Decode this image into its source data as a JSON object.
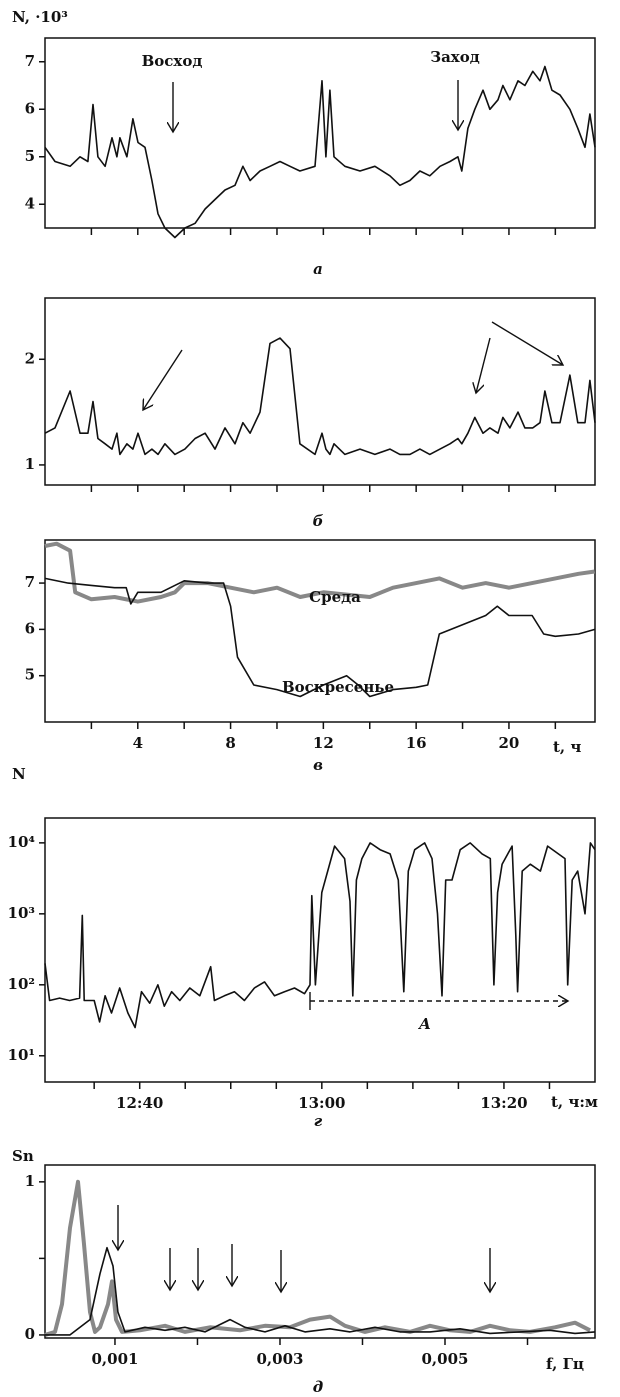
{
  "chart_data": [
    {
      "type": "line",
      "ylabel": "N, ·10³",
      "caption": "а",
      "annotations": [
        "Восход",
        "Заход"
      ],
      "xlim": [
        0,
        23.71
      ],
      "xticks_minor": [
        2,
        4,
        6,
        8,
        10,
        12,
        14,
        16,
        18,
        20,
        22
      ],
      "ylim": [
        3.5,
        7.5
      ],
      "yticks": [
        4,
        5,
        6,
        7
      ],
      "series": [
        {
          "color": "#111111",
          "x": [
            0,
            0.43,
            1.08,
            1.51,
            1.85,
            2.07,
            2.28,
            2.59,
            2.89,
            3.1,
            3.23,
            3.53,
            3.79,
            4.01,
            4.31,
            4.61,
            4.87,
            5.17,
            5.6,
            6.03,
            6.47,
            6.9,
            7.33,
            7.76,
            8.19,
            8.53,
            8.84,
            9.27,
            9.7,
            10.13,
            10.56,
            10.99,
            11.64,
            11.94,
            12.11,
            12.28,
            12.46,
            12.93,
            13.58,
            14.22,
            14.87,
            15.3,
            15.73,
            16.16,
            16.59,
            17.03,
            17.46,
            17.8,
            17.97,
            18.23,
            18.53,
            18.88,
            19.18,
            19.53,
            19.74,
            20.04,
            20.39,
            20.69,
            21.03,
            21.34,
            21.55,
            21.85,
            22.2,
            22.63,
            22.97,
            23.28,
            23.49,
            23.71
          ],
          "values": [
            5.2,
            4.9,
            4.8,
            5.0,
            4.9,
            6.1,
            5.0,
            4.8,
            5.4,
            5.0,
            5.4,
            5.0,
            5.8,
            5.3,
            5.2,
            4.5,
            3.8,
            3.5,
            3.3,
            3.5,
            3.6,
            3.9,
            4.1,
            4.3,
            4.4,
            4.8,
            4.5,
            4.7,
            4.8,
            4.9,
            4.8,
            4.7,
            4.8,
            6.6,
            5.0,
            6.4,
            5.0,
            4.8,
            4.7,
            4.8,
            4.6,
            4.4,
            4.5,
            4.7,
            4.6,
            4.8,
            4.9,
            5.0,
            4.7,
            5.6,
            6.0,
            6.4,
            6.0,
            6.2,
            6.5,
            6.2,
            6.6,
            6.5,
            6.8,
            6.6,
            6.9,
            6.4,
            6.3,
            6.0,
            5.6,
            5.2,
            5.9,
            5.2
          ]
        }
      ]
    },
    {
      "type": "line",
      "caption": "б",
      "xlim": [
        0,
        23.71
      ],
      "xticks_minor": [
        2,
        4,
        6,
        8,
        10,
        12,
        14,
        16,
        18,
        20,
        22
      ],
      "ylim": [
        0.81,
        2.58
      ],
      "yticks": [
        1,
        2
      ],
      "series": [
        {
          "color": "#111111",
          "x": [
            0,
            0.43,
            1.08,
            1.51,
            1.85,
            2.07,
            2.28,
            2.59,
            2.89,
            3.1,
            3.23,
            3.53,
            3.79,
            4.01,
            4.31,
            4.61,
            4.87,
            5.17,
            5.6,
            6.03,
            6.47,
            6.9,
            7.33,
            7.76,
            8.19,
            8.53,
            8.84,
            9.27,
            9.7,
            10.13,
            10.56,
            10.99,
            11.64,
            11.94,
            12.11,
            12.28,
            12.46,
            12.93,
            13.58,
            14.22,
            14.87,
            15.3,
            15.73,
            16.16,
            16.59,
            17.03,
            17.46,
            17.8,
            17.97,
            18.23,
            18.53,
            18.88,
            19.18,
            19.53,
            19.74,
            20.04,
            20.39,
            20.69,
            21.03,
            21.34,
            21.55,
            21.85,
            22.2,
            22.63,
            22.97,
            23.28,
            23.49,
            23.71
          ],
          "values": [
            1.3,
            1.35,
            1.7,
            1.3,
            1.3,
            1.6,
            1.25,
            1.2,
            1.15,
            1.3,
            1.1,
            1.2,
            1.15,
            1.3,
            1.1,
            1.15,
            1.1,
            1.2,
            1.1,
            1.15,
            1.25,
            1.3,
            1.15,
            1.35,
            1.2,
            1.4,
            1.3,
            1.5,
            2.15,
            2.2,
            2.1,
            1.2,
            1.1,
            1.3,
            1.15,
            1.1,
            1.2,
            1.1,
            1.15,
            1.1,
            1.15,
            1.1,
            1.1,
            1.15,
            1.1,
            1.15,
            1.2,
            1.25,
            1.2,
            1.3,
            1.45,
            1.3,
            1.35,
            1.3,
            1.45,
            1.35,
            1.5,
            1.35,
            1.35,
            1.4,
            1.7,
            1.4,
            1.4,
            1.85,
            1.4,
            1.4,
            1.8,
            1.4
          ]
        }
      ]
    },
    {
      "type": "line",
      "caption": "в",
      "xlabel": "t, ч",
      "xlim": [
        0,
        23.71
      ],
      "xticks": [
        4,
        8,
        12,
        16,
        20
      ],
      "xticks_minor": [
        2,
        6,
        10,
        14,
        18,
        22
      ],
      "ylim": [
        4.0,
        7.93
      ],
      "yticks": [
        5,
        6,
        7
      ],
      "series": [
        {
          "name": "Среда",
          "color": "#888888",
          "x": [
            0,
            0.5,
            1.08,
            1.3,
            2,
            3,
            4,
            5,
            5.6,
            6,
            7,
            8,
            9,
            10,
            11,
            12,
            13,
            14,
            15,
            16,
            17,
            18,
            19,
            20,
            21,
            22,
            23,
            23.7
          ],
          "values": [
            7.8,
            7.85,
            7.7,
            6.8,
            6.65,
            6.7,
            6.6,
            6.7,
            6.8,
            7.0,
            7.0,
            6.9,
            6.8,
            6.9,
            6.7,
            6.8,
            6.75,
            6.7,
            6.9,
            7.0,
            7.1,
            6.9,
            7.0,
            6.9,
            7.0,
            7.1,
            7.2,
            7.25
          ]
        },
        {
          "name": "Воскресенье",
          "color": "#111111",
          "x": [
            0,
            1,
            2,
            3,
            3.5,
            3.7,
            4,
            5,
            6,
            7,
            7.7,
            8,
            8.3,
            9,
            10,
            11,
            12,
            13,
            13.5,
            14,
            15,
            16,
            16.5,
            17,
            18,
            19,
            19.5,
            20,
            21,
            21.5,
            22,
            23,
            23.7
          ],
          "values": [
            7.1,
            7.0,
            6.95,
            6.9,
            6.9,
            6.55,
            6.8,
            6.8,
            7.05,
            7.0,
            7.0,
            6.5,
            5.4,
            4.8,
            4.7,
            4.55,
            4.8,
            5.0,
            4.8,
            4.55,
            4.7,
            4.75,
            4.8,
            5.9,
            6.1,
            6.3,
            6.5,
            6.3,
            6.3,
            5.9,
            5.85,
            5.9,
            6.0
          ]
        }
      ]
    },
    {
      "type": "line",
      "ylabel": "N",
      "caption": "г",
      "xlabel": "t, ч:м",
      "annotations": [
        "A"
      ],
      "yscale": "log",
      "xlim": [
        749.6,
        810
      ],
      "xticks": [
        {
          "value": 760,
          "label": "12:40"
        },
        {
          "value": 780,
          "label": "13:00"
        },
        {
          "value": 800,
          "label": "13:20"
        }
      ],
      "xticks_minor": [
        755,
        765,
        770,
        775,
        785,
        790,
        795,
        805
      ],
      "ylim": [
        4.27,
        22400
      ],
      "yticks": [
        {
          "value": 10,
          "label": "10¹"
        },
        {
          "value": 100,
          "label": "10²"
        },
        {
          "value": 1000,
          "label": "10³"
        },
        {
          "value": 10000,
          "label": "10⁴"
        }
      ],
      "series": [
        {
          "color": "#111111",
          "x": [
            749.6,
            750.1,
            751.2,
            752.3,
            753.4,
            753.7,
            753.9,
            755,
            755.6,
            756.2,
            756.9,
            757.8,
            758.7,
            759.5,
            760.2,
            761.1,
            762,
            762.7,
            763.5,
            764.4,
            765.5,
            766.6,
            767.8,
            768.2,
            769.3,
            770.4,
            771.5,
            772.6,
            773.7,
            774.8,
            775.9,
            777,
            778.1,
            778.7,
            778.9,
            779.3,
            780.0,
            781.4,
            782.5,
            783.1,
            783.4,
            783.8,
            784.4,
            785.3,
            786.4,
            787.5,
            788.4,
            789.0,
            789.5,
            790.2,
            791.3,
            792.1,
            792.7,
            793.2,
            793.6,
            794.3,
            795.2,
            796.3,
            797.6,
            798.5,
            798.9,
            799.3,
            799.8,
            800.9,
            801.3,
            801.5,
            802.0,
            802.9,
            804.0,
            804.8,
            806.7,
            807.0,
            807.5,
            808.1,
            808.9,
            809.5,
            810.0
          ],
          "values": [
            200,
            60,
            65,
            60,
            65,
            950,
            60,
            60,
            30,
            70,
            40,
            90,
            40,
            25,
            80,
            55,
            100,
            50,
            80,
            60,
            90,
            70,
            180,
            60,
            70,
            80,
            60,
            90,
            110,
            70,
            80,
            90,
            75,
            100,
            1800,
            100,
            2000,
            9000,
            6000,
            1500,
            70,
            3000,
            6000,
            10000,
            8000,
            7000,
            3000,
            80,
            4000,
            8000,
            10000,
            6000,
            1000,
            70,
            3000,
            3000,
            8000,
            10000,
            7000,
            6000,
            100,
            2000,
            5000,
            9000,
            500,
            80,
            4000,
            5000,
            4000,
            9000,
            6000,
            100,
            3000,
            4000,
            1000,
            10000,
            8000
          ]
        }
      ]
    },
    {
      "type": "line",
      "ylabel": "Sn",
      "caption": "д",
      "xlabel": "f, Гц",
      "xlim": [
        0.000152,
        0.006818
      ],
      "xticks": [
        {
          "value": 0.001,
          "label": "0,001"
        },
        {
          "value": 0.003,
          "label": "0,003"
        },
        {
          "value": 0.005,
          "label": "0,005"
        }
      ],
      "xticks_minor": [
        0.002,
        0.004,
        0.006
      ],
      "ylim": [
        -0.02,
        1.11
      ],
      "yticks": [
        0,
        1
      ],
      "yticks_minor": [
        0.5
      ],
      "series": [
        {
          "color": "#888888",
          "x": [
            0.000152,
            0.000273,
            0.000358,
            0.000455,
            0.000552,
            0.000624,
            0.000697,
            0.000758,
            0.000818,
            0.000915,
            0.000964,
            0.001012,
            0.001085,
            0.001303,
            0.001606,
            0.001848,
            0.002152,
            0.002515,
            0.002818,
            0.003121,
            0.003364,
            0.003606,
            0.003788,
            0.00403,
            0.004273,
            0.004576,
            0.004818,
            0.005061,
            0.005303,
            0.005545,
            0.005788,
            0.00603,
            0.006333,
            0.006576,
            0.006758
          ],
          "values": [
            0,
            0.02,
            0.2,
            0.7,
            1.0,
            0.6,
            0.15,
            0.02,
            0.05,
            0.2,
            0.35,
            0.1,
            0.02,
            0.03,
            0.06,
            0.02,
            0.05,
            0.03,
            0.06,
            0.05,
            0.1,
            0.12,
            0.06,
            0.02,
            0.05,
            0.02,
            0.06,
            0.03,
            0.02,
            0.06,
            0.03,
            0.02,
            0.05,
            0.08,
            0.03
          ]
        },
        {
          "color": "#111111",
          "x": [
            0.000152,
            0.000455,
            0.000697,
            0.000818,
            0.000903,
            0.000976,
            0.001036,
            0.001121,
            0.001364,
            0.001606,
            0.001848,
            0.002091,
            0.002394,
            0.002576,
            0.002818,
            0.003061,
            0.003303,
            0.003606,
            0.003848,
            0.004152,
            0.004455,
            0.004818,
            0.005182,
            0.005545,
            0.005909,
            0.006273,
            0.006576,
            0.006818
          ],
          "values": [
            0,
            0,
            0.1,
            0.4,
            0.57,
            0.45,
            0.15,
            0.02,
            0.05,
            0.03,
            0.05,
            0.02,
            0.1,
            0.05,
            0.02,
            0.06,
            0.02,
            0.04,
            0.02,
            0.05,
            0.02,
            0.02,
            0.04,
            0.01,
            0.02,
            0.03,
            0.01,
            0.02
          ]
        }
      ]
    }
  ]
}
